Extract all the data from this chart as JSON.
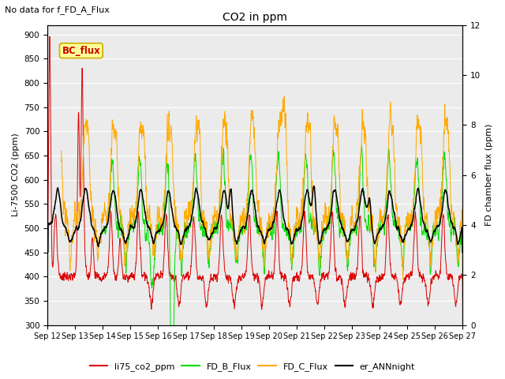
{
  "title": "CO2 in ppm",
  "subtitle": "No data for f_FD_A_Flux",
  "ylabel_left": "Li-7500 CO2 (ppm)",
  "ylabel_right": "FD chamber flux (ppm)",
  "ylim_left": [
    300,
    920
  ],
  "ylim_right": [
    0,
    12
  ],
  "yticks_left": [
    300,
    350,
    400,
    450,
    500,
    550,
    600,
    650,
    700,
    750,
    800,
    850,
    900
  ],
  "yticks_right": [
    0,
    2,
    4,
    6,
    8,
    10,
    12
  ],
  "colors": {
    "li75_co2_ppm": "#dd0000",
    "FD_B_Flux": "#00dd00",
    "FD_C_Flux": "#ffaa00",
    "er_ANNnight": "#000000",
    "BC_flux_box": "#ffff99",
    "BC_flux_border": "#ccaa00",
    "BC_flux_text": "#cc0000"
  },
  "legend_labels": [
    "li75_co2_ppm",
    "FD_B_Flux",
    "FD_C_Flux",
    "er_ANNnight"
  ],
  "x_ticklabels": [
    "Sep 12",
    "Sep 13",
    "Sep 14",
    "Sep 15",
    "Sep 16",
    "Sep 17",
    "Sep 18",
    "Sep 19",
    "Sep 20",
    "Sep 21",
    "Sep 22",
    "Sep 23",
    "Sep 24",
    "Sep 25",
    "Sep 26",
    "Sep 27"
  ],
  "background_color": "#ebebeb",
  "figsize": [
    6.4,
    4.8
  ],
  "dpi": 100
}
